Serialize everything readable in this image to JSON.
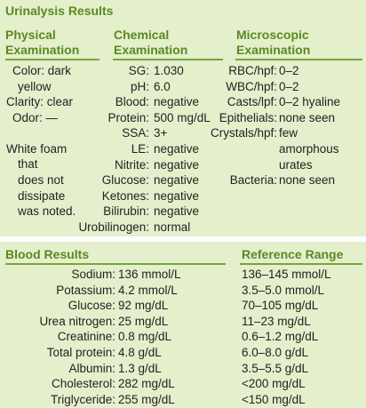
{
  "title": "Urinalysis Results",
  "physical": {
    "heading1": "Physical",
    "heading2": "Examination",
    "lines": [
      "Color: dark",
      "yellow",
      "Clarity: clear",
      "Odor: —"
    ],
    "note": [
      "White foam",
      "that",
      "does not",
      "dissipate",
      "was noted."
    ]
  },
  "chemical": {
    "heading1": "Chemical",
    "heading2": "Examination",
    "rows": [
      {
        "label": "SG:",
        "value": "1.030"
      },
      {
        "label": "pH:",
        "value": "6.0"
      },
      {
        "label": "Blood:",
        "value": "negative"
      },
      {
        "label": "Protein:",
        "value": "500 mg/dL"
      },
      {
        "label": "SSA:",
        "value": "3+"
      },
      {
        "label": "LE:",
        "value": "negative"
      },
      {
        "label": "Nitrite:",
        "value": "negative"
      },
      {
        "label": "Glucose:",
        "value": "negative"
      },
      {
        "label": "Ketones:",
        "value": "negative"
      },
      {
        "label": "Bilirubin:",
        "value": "negative"
      },
      {
        "label": "Urobilinogen:",
        "value": "normal"
      }
    ]
  },
  "microscopic": {
    "heading1": "Microscopic",
    "heading2": "Examination",
    "rows": [
      {
        "label": "RBC/hpf:",
        "value": "0–2"
      },
      {
        "label": "WBC/hpf:",
        "value": "0–2"
      },
      {
        "label": "Casts/lpf:",
        "value": "0–2 hyaline"
      },
      {
        "label": "Epithelials:",
        "value": "none seen"
      },
      {
        "label": "Crystals/hpf:",
        "value": "few"
      },
      {
        "label": "",
        "value": "amorphous"
      },
      {
        "label": "",
        "value": "urates"
      },
      {
        "label": "Bacteria:",
        "value": "none seen"
      }
    ]
  },
  "blood": {
    "heading": "Blood Results",
    "ref_heading": "Reference Range",
    "rows": [
      {
        "label": "Sodium:",
        "value": "136 mmol/L",
        "ref": "136–145 mmol/L"
      },
      {
        "label": "Potassium:",
        "value": "4.2 mmol/L",
        "ref": "3.5–5.0 mmol/L"
      },
      {
        "label": "Glucose:",
        "value": "92 mg/dL",
        "ref": "70–105 mg/dL"
      },
      {
        "label": "Urea nitrogen:",
        "value": "25 mg/dL",
        "ref": "11–23 mg/dL"
      },
      {
        "label": "Creatinine:",
        "value": "0.8 mg/dL",
        "ref": "0.6–1.2 mg/dL"
      },
      {
        "label": "Total protein:",
        "value": "4.8 g/dL",
        "ref": "6.0–8.0 g/dL"
      },
      {
        "label": "Albumin:",
        "value": "1.3 g/dL",
        "ref": "3.5–5.5 g/dL"
      },
      {
        "label": "Cholesterol:",
        "value": "282 mg/dL",
        "ref": "<200 mg/dL"
      },
      {
        "label": "Triglyceride:",
        "value": "255 mg/dL",
        "ref": "<150 mg/dL"
      }
    ]
  }
}
